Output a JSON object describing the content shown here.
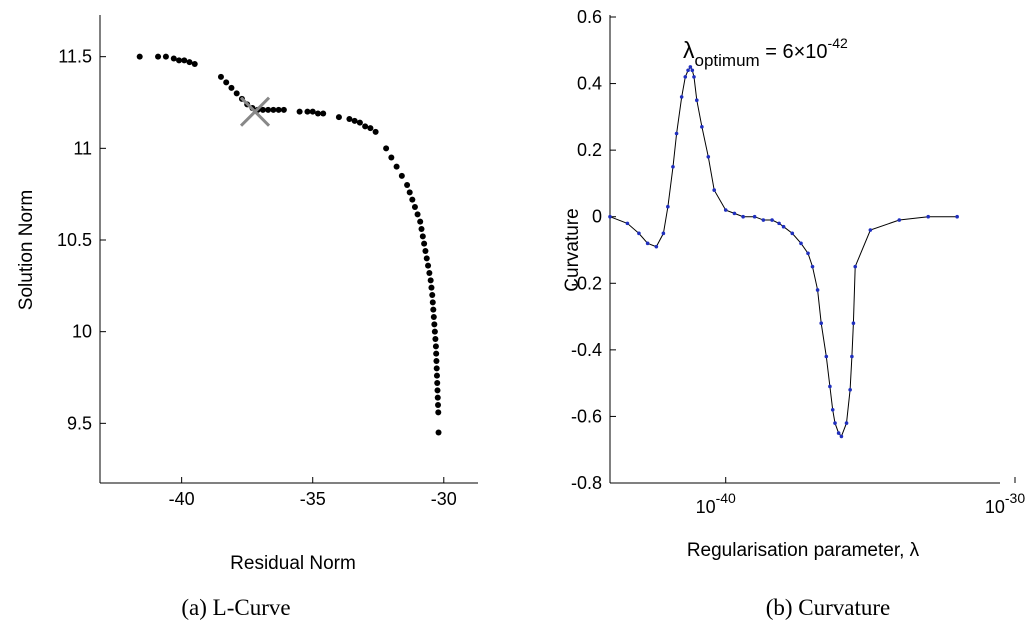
{
  "captions": {
    "left": "(a) L-Curve",
    "right": "(b) Curvature"
  },
  "chart_data": [
    {
      "type": "scatter",
      "xlabel": "Residual Norm",
      "ylabel": "Solution Norm",
      "xlim": [
        -43,
        -29
      ],
      "ylim": [
        9.3,
        11.7
      ],
      "xticks": [
        -40,
        -35,
        -30
      ],
      "xtick_labels": [
        "-40",
        "-35",
        "-30"
      ],
      "yticks": [
        9.5,
        10,
        10.5,
        11,
        11.5
      ],
      "ytick_labels": [
        "9.5",
        "10",
        "10.5",
        "11",
        "11.5"
      ],
      "marker_color": "#000000",
      "optimum_marker_color": "#888888",
      "optimum": {
        "x": -37.2,
        "y": 11.2
      },
      "points": [
        [
          -41.6,
          11.5
        ],
        [
          -40.9,
          11.5
        ],
        [
          -40.6,
          11.5
        ],
        [
          -40.3,
          11.49
        ],
        [
          -40.1,
          11.48
        ],
        [
          -39.9,
          11.48
        ],
        [
          -39.7,
          11.47
        ],
        [
          -39.5,
          11.46
        ],
        [
          -38.5,
          11.39
        ],
        [
          -38.3,
          11.36
        ],
        [
          -38.1,
          11.33
        ],
        [
          -37.9,
          11.3
        ],
        [
          -37.7,
          11.27
        ],
        [
          -37.5,
          11.24
        ],
        [
          -37.3,
          11.22
        ],
        [
          -37.1,
          11.21
        ],
        [
          -36.9,
          11.21
        ],
        [
          -36.7,
          11.21
        ],
        [
          -36.5,
          11.21
        ],
        [
          -36.3,
          11.21
        ],
        [
          -36.1,
          11.21
        ],
        [
          -35.5,
          11.2
        ],
        [
          -35.2,
          11.2
        ],
        [
          -35.0,
          11.2
        ],
        [
          -34.8,
          11.19
        ],
        [
          -34.6,
          11.19
        ],
        [
          -34.0,
          11.17
        ],
        [
          -33.6,
          11.16
        ],
        [
          -33.4,
          11.15
        ],
        [
          -33.2,
          11.14
        ],
        [
          -33.0,
          11.12
        ],
        [
          -32.8,
          11.11
        ],
        [
          -32.6,
          11.09
        ],
        [
          -32.2,
          11.0
        ],
        [
          -32.0,
          10.95
        ],
        [
          -31.8,
          10.9
        ],
        [
          -31.6,
          10.85
        ],
        [
          -31.4,
          10.8
        ],
        [
          -31.3,
          10.76
        ],
        [
          -31.2,
          10.72
        ],
        [
          -31.1,
          10.68
        ],
        [
          -31.0,
          10.64
        ],
        [
          -30.9,
          10.6
        ],
        [
          -30.85,
          10.56
        ],
        [
          -30.8,
          10.52
        ],
        [
          -30.75,
          10.48
        ],
        [
          -30.7,
          10.44
        ],
        [
          -30.65,
          10.4
        ],
        [
          -30.6,
          10.36
        ],
        [
          -30.55,
          10.32
        ],
        [
          -30.5,
          10.28
        ],
        [
          -30.47,
          10.24
        ],
        [
          -30.44,
          10.2
        ],
        [
          -30.42,
          10.16
        ],
        [
          -30.4,
          10.12
        ],
        [
          -30.38,
          10.08
        ],
        [
          -30.36,
          10.04
        ],
        [
          -30.34,
          10.0
        ],
        [
          -30.32,
          9.96
        ],
        [
          -30.3,
          9.92
        ],
        [
          -30.29,
          9.88
        ],
        [
          -30.28,
          9.84
        ],
        [
          -30.27,
          9.8
        ],
        [
          -30.26,
          9.76
        ],
        [
          -30.25,
          9.72
        ],
        [
          -30.24,
          9.68
        ],
        [
          -30.23,
          9.64
        ],
        [
          -30.22,
          9.6
        ],
        [
          -30.21,
          9.56
        ],
        [
          -30.2,
          9.45
        ]
      ]
    },
    {
      "type": "line",
      "xscale": "log",
      "xlabel": "Regularisation parameter, λ",
      "ylabel": "Curvature",
      "xlim": [
        "1e-44",
        "1e-30"
      ],
      "ylim": [
        -0.8,
        0.6
      ],
      "xticks": [
        "1e-40",
        "1e-30"
      ],
      "xtick_labels": [
        {
          "base": "10",
          "exp": "-40"
        },
        {
          "base": "10",
          "exp": "-30"
        }
      ],
      "yticks": [
        -0.8,
        -0.6,
        -0.4,
        -0.2,
        0,
        0.2,
        0.4,
        0.6
      ],
      "ytick_labels": [
        "-0.8",
        "-0.6",
        "-0.4",
        "-0.2",
        "0",
        "0.2",
        "0.4",
        "0.6"
      ],
      "line_color": "#000000",
      "marker_color": "#1f2fbf",
      "annotation": {
        "symbol": "λ",
        "subscript": "optimum",
        "text": " = 6×10",
        "exponent": "-42"
      },
      "series": [
        {
          "x": [
            "1e-44",
            "4e-44",
            "1e-43",
            "2e-43",
            "4e-43",
            "7e-43",
            "1e-42",
            "1.5e-42",
            "2e-42",
            "3e-42",
            "4e-42",
            "5e-42",
            "6e-42",
            "7e-42",
            "8e-42",
            "1e-41",
            "1.5e-41",
            "2.5e-41",
            "4e-41",
            "1e-40",
            "2e-40",
            "4e-40",
            "1e-39",
            "2e-39",
            "4e-39",
            "7e-39",
            "1e-38",
            "2e-38",
            "4e-38",
            "7e-38",
            "1e-37",
            "1.5e-37",
            "2e-37",
            "3e-37",
            "4e-37",
            "5e-37",
            "6e-37",
            "8e-37",
            "1e-36",
            "1.5e-36",
            "2e-36",
            "2.3e-36",
            "2.6e-36",
            "3e-36",
            "1e-35",
            "1e-34",
            "1e-33",
            "1e-32"
          ],
          "y": [
            0.0,
            -0.02,
            -0.05,
            -0.08,
            -0.09,
            -0.05,
            0.03,
            0.15,
            0.25,
            0.36,
            0.42,
            0.44,
            0.45,
            0.44,
            0.42,
            0.35,
            0.27,
            0.18,
            0.08,
            0.02,
            0.01,
            0.0,
            0.0,
            -0.01,
            -0.01,
            -0.02,
            -0.03,
            -0.05,
            -0.08,
            -0.11,
            -0.15,
            -0.22,
            -0.32,
            -0.42,
            -0.51,
            -0.58,
            -0.62,
            -0.65,
            -0.66,
            -0.62,
            -0.52,
            -0.42,
            -0.32,
            -0.15,
            -0.04,
            -0.01,
            0.0,
            0.0
          ]
        }
      ]
    }
  ]
}
